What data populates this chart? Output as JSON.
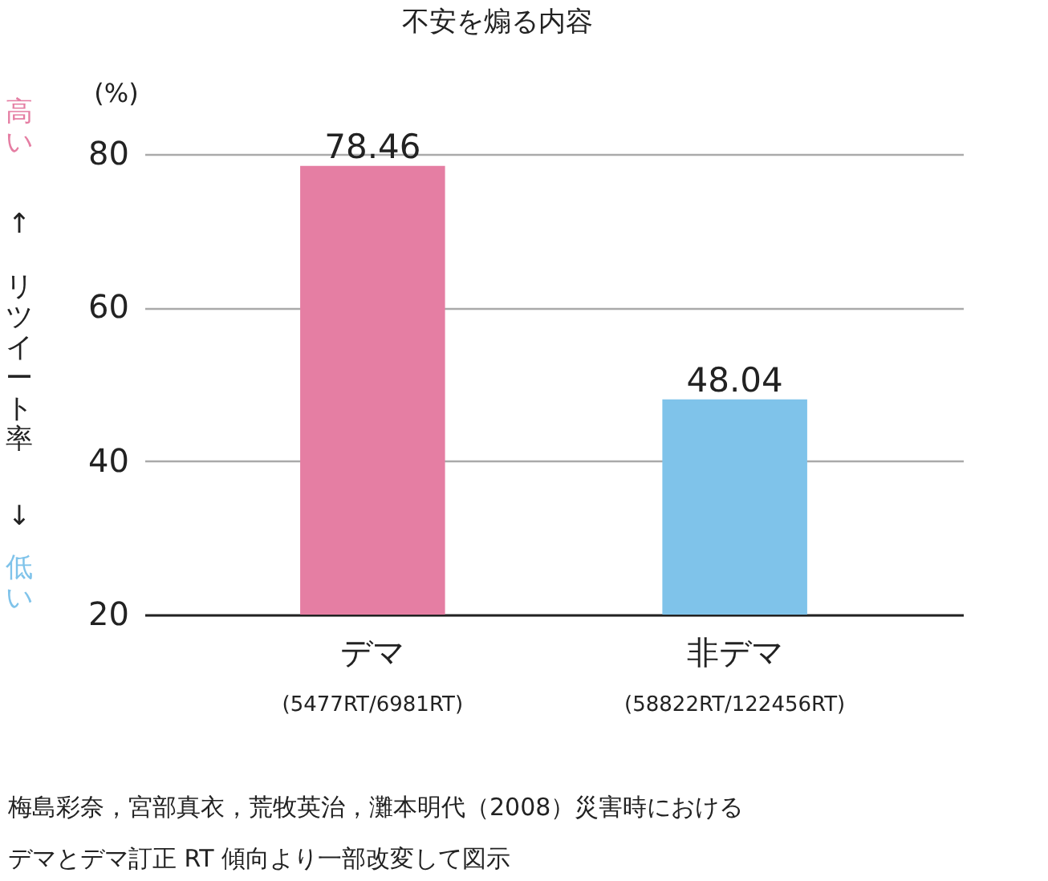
{
  "chart_data": {
    "type": "bar",
    "title": "不安を煽る内容",
    "ylabel": "(%)",
    "categories": [
      "デマ",
      "非デマ"
    ],
    "values": [
      78.46,
      48.04
    ],
    "colors": [
      "#e57ea3",
      "#7fc3ea"
    ],
    "ylim": [
      20,
      80
    ],
    "yticks": [
      20,
      40,
      60,
      80
    ],
    "grid": "y",
    "data_labels": true,
    "annotations": [
      "高い",
      "↑",
      "リツイート率",
      "↓",
      "低い",
      "(5477RT/6981RT)",
      "(58822RT/122456RT)",
      "梅島彩奈，宮部真衣，荒牧英治，灘本明代（2008）災害時における",
      "デマとデマ訂正 RT 傾向より一部改変して図示"
    ]
  }
}
